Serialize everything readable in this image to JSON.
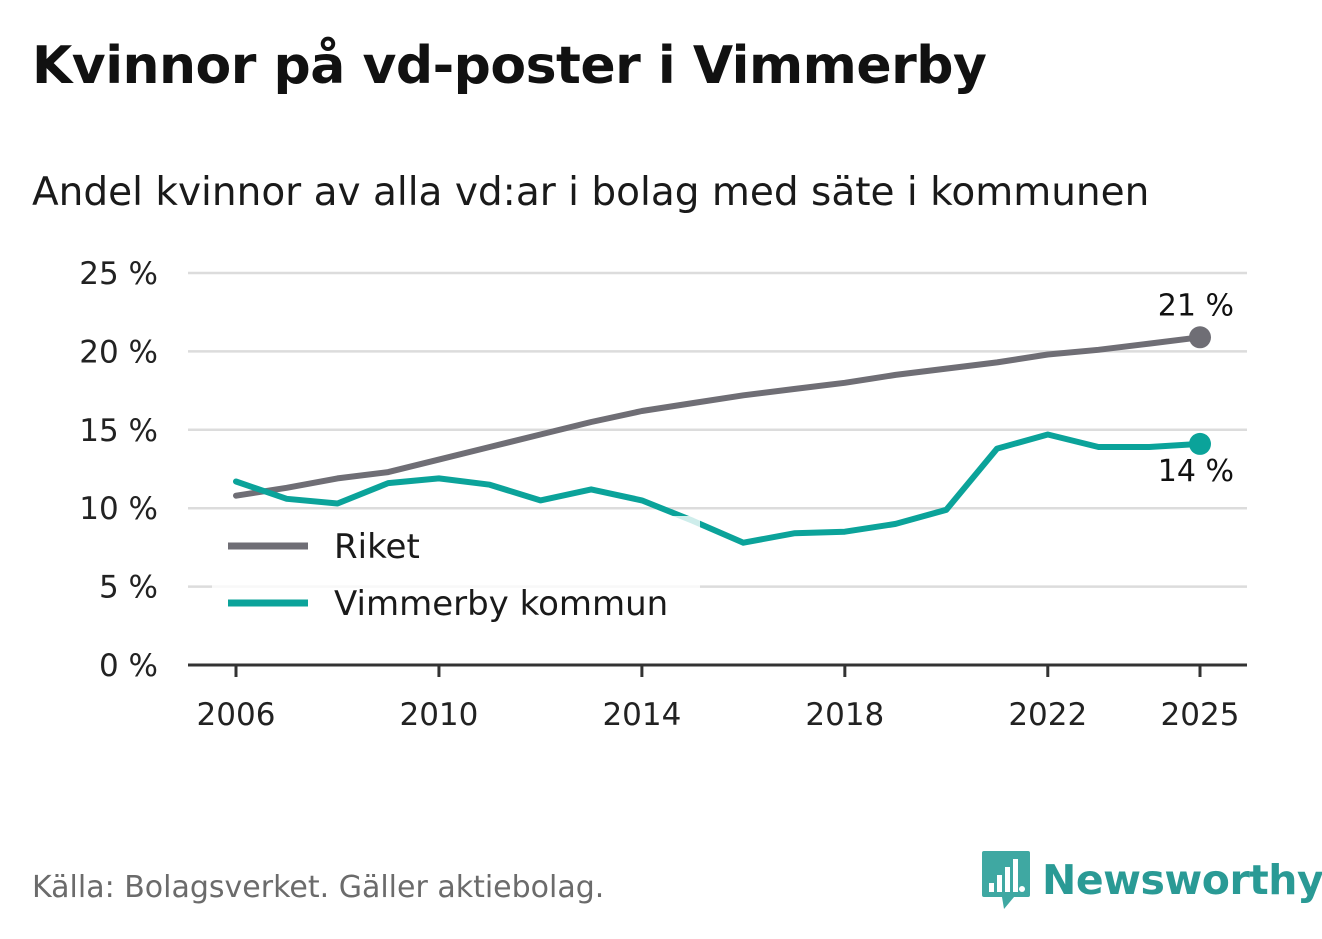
{
  "header": {
    "title": "Kvinnor på vd-poster i Vimmerby",
    "subtitle": "Andel kvinnor av alla vd:ar i bolag med säte i kommunen"
  },
  "footer": {
    "source": "Källa: Bolagsverket. Gäller aktiebolag.",
    "brand": "Newsworthy",
    "brand_color": "#3fa8a2"
  },
  "chart_data": {
    "type": "line",
    "title": "Kvinnor på vd-poster i Vimmerby",
    "subtitle": "Andel kvinnor av alla vd:ar i bolag med säte i kommunen",
    "xlabel": "",
    "ylabel": "",
    "x": [
      2006,
      2007,
      2008,
      2009,
      2010,
      2011,
      2012,
      2013,
      2014,
      2015,
      2016,
      2017,
      2018,
      2019,
      2020,
      2021,
      2022,
      2023,
      2024,
      2025
    ],
    "x_ticks": [
      2006,
      2010,
      2014,
      2018,
      2022,
      2025
    ],
    "x_tick_labels": [
      "2006",
      "2010",
      "2014",
      "2018",
      "2022",
      "2025"
    ],
    "xlim": [
      2006,
      2025
    ],
    "ylim": [
      0,
      25
    ],
    "y_ticks": [
      0,
      5,
      10,
      15,
      20,
      25
    ],
    "y_tick_labels": [
      "0 %",
      "5 %",
      "10 %",
      "15 %",
      "20 %",
      "25 %"
    ],
    "grid": true,
    "legend_position": "bottom-left",
    "series": [
      {
        "name": "Riket",
        "color": "#6f6e75",
        "values": [
          10.8,
          11.3,
          11.9,
          12.3,
          13.1,
          13.9,
          14.7,
          15.5,
          16.2,
          16.7,
          17.2,
          17.6,
          18.0,
          18.5,
          18.9,
          19.3,
          19.8,
          20.1,
          20.5,
          20.9
        ],
        "end_label": "21 %"
      },
      {
        "name": "Vimmerby kommun",
        "color": "#0ba39a",
        "values": [
          11.7,
          10.6,
          10.3,
          11.6,
          11.9,
          11.5,
          10.5,
          11.2,
          10.5,
          9.2,
          7.8,
          8.4,
          8.5,
          9.0,
          9.9,
          13.8,
          14.7,
          13.9,
          13.9,
          14.1
        ],
        "end_label": "14 %"
      }
    ]
  }
}
